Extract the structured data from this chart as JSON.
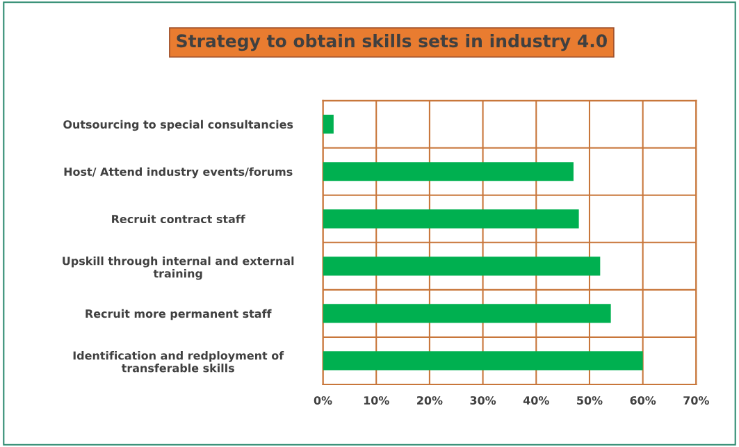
{
  "chart_data": {
    "type": "bar",
    "orientation": "horizontal",
    "title": "Strategy to obtain skills sets in industry 4.0",
    "categories": [
      "Outsourcing to special consultancies",
      "Host/ Attend industry events/forums",
      "Recruit contract staff",
      "Upskill through internal and external\ntraining",
      "Recruit more permanent staff",
      "Identification and redployment of\ntransferable skills"
    ],
    "values": [
      0.02,
      0.47,
      0.48,
      0.52,
      0.54,
      0.6
    ],
    "color": "#00b050",
    "xlim": [
      0,
      0.7
    ],
    "xticks": [
      {
        "value": 0,
        "label": "0%"
      },
      {
        "value": 0.1,
        "label": "10%"
      },
      {
        "value": 0.2,
        "label": "20%"
      },
      {
        "value": 0.3,
        "label": "30%"
      },
      {
        "value": 0.4,
        "label": "40%"
      },
      {
        "value": 0.5,
        "label": "50%"
      },
      {
        "value": 0.6,
        "label": "60%"
      },
      {
        "value": 0.7,
        "label": "70%"
      }
    ],
    "grid": true
  }
}
